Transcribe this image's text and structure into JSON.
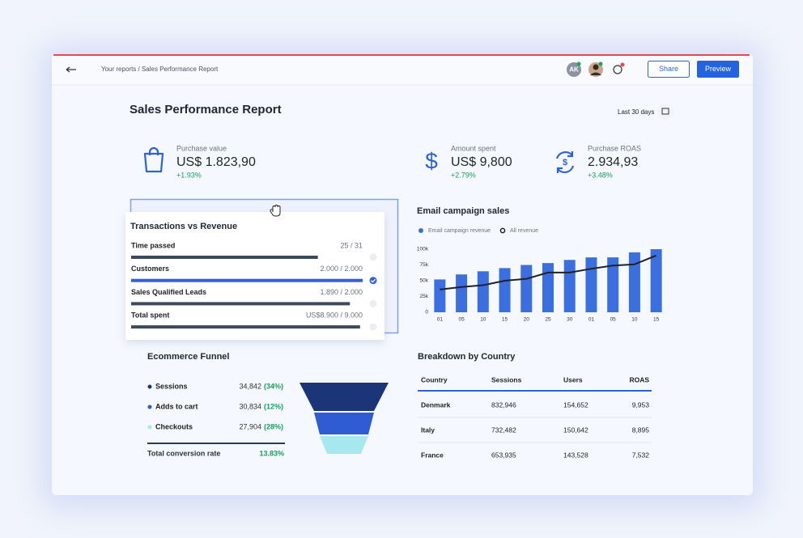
{
  "header": {
    "breadcrumb": "Your reports / Sales Performance Report",
    "avatar_initials": "AK",
    "share": "Share",
    "preview": "Preview"
  },
  "title": "Sales Performance Report",
  "date_range": "Last 30 days",
  "kpis": [
    {
      "label": "Purchase value",
      "value": "US$ 1.823,90",
      "change": "+1.93%"
    },
    {
      "label": "Amount spent",
      "value": "US$ 9,800",
      "change": "+2.79%"
    },
    {
      "label": "Purchase ROAS",
      "value": "2.934,93",
      "change": "+3.48%"
    }
  ],
  "progress": {
    "title": "Transactions vs Revenue",
    "rows": [
      {
        "label": "Time passed",
        "value": 25,
        "target": 31,
        "value_label": "25 / 31",
        "color": "#3d4a5c"
      },
      {
        "label": "Customers",
        "value": 2000,
        "target": 2000,
        "value_label": "2.000 / 2.000",
        "color": "#2f62d8"
      },
      {
        "label": "Sales Qualified Leads",
        "value": 1890,
        "target": 2000,
        "value_label": "1.890 / 2.000",
        "color": "#3d4a5c"
      },
      {
        "label": "Total spent",
        "value": 8900,
        "target": 9000,
        "value_label": "US$8.900 / 9.000",
        "color": "#3d4a5c"
      }
    ]
  },
  "chart_data": {
    "type": "bar",
    "title": "Email campaign sales",
    "categories": [
      "01",
      "05",
      "10",
      "15",
      "20",
      "25",
      "30",
      "01",
      "05",
      "10",
      "15"
    ],
    "series": [
      {
        "name": "Email campaign revenue",
        "type": "bar",
        "color": "#3b6fe0",
        "values": [
          52000,
          60000,
          65000,
          70000,
          75000,
          78000,
          83000,
          87000,
          87000,
          95000,
          100000
        ]
      },
      {
        "name": "All revenue",
        "type": "line",
        "color": "#1f2329",
        "values": [
          36000,
          40000,
          43000,
          50000,
          53000,
          63000,
          63000,
          69000,
          74000,
          76000,
          90000
        ]
      }
    ],
    "ylim": [
      0,
      100000
    ],
    "yticks": [
      0,
      {
        "value": 25000,
        "label": "25k"
      },
      {
        "value": 50000,
        "label": "50k"
      },
      {
        "value": 75000,
        "label": "75k"
      },
      {
        "value": 100000,
        "label": "100k"
      }
    ]
  },
  "funnel": {
    "title": "Ecommerce Funnel",
    "rows": [
      {
        "label": "Sessions",
        "value": "34,842",
        "share": "(34%)",
        "color": "#1c3578"
      },
      {
        "label": "Adds to cart",
        "value": "30,834",
        "share": "(12%)",
        "color": "#2f5bd3"
      },
      {
        "label": "Checkouts",
        "value": "27,904",
        "share": "(28%)",
        "color": "#a7e8ee"
      }
    ],
    "total_label": "Total conversion rate",
    "total_value": "13.83%"
  },
  "country_table": {
    "title": "Breakdown by Country",
    "columns": [
      "Country",
      "Sessions",
      "Users",
      "ROAS"
    ],
    "rows": [
      [
        "Denmark",
        "832,946",
        "154,652",
        "9,953"
      ],
      [
        "Italy",
        "732,482",
        "150,642",
        "8,895"
      ],
      [
        "France",
        "653,935",
        "143,528",
        "7,532"
      ]
    ]
  }
}
